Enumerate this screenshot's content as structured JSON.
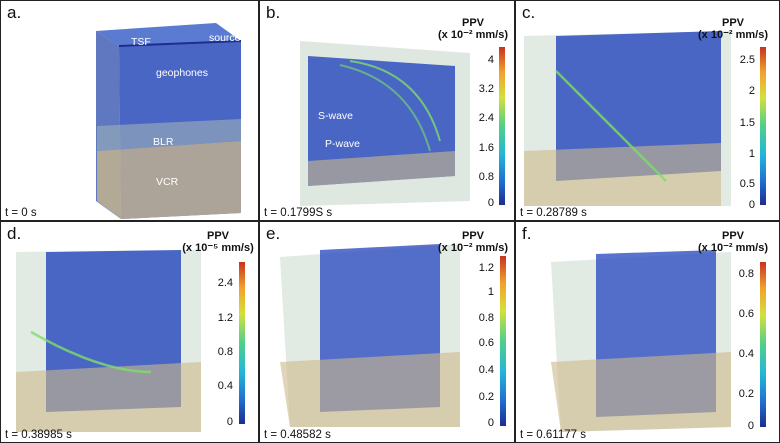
{
  "panels": [
    {
      "label": "a.",
      "time": "t = 0 s",
      "annotations": {
        "tsf": "TSF",
        "source": "source",
        "geophones": "geophones",
        "blr": "BLR",
        "vcr": "VCR"
      }
    },
    {
      "label": "b.",
      "time": "t = 0.1799S s",
      "colorbar": {
        "title": "PPV",
        "unit": "(x 10⁻² mm/s)",
        "ticks": [
          "4",
          "3.2",
          "2.4",
          "1.6",
          "0.8",
          "0"
        ]
      },
      "annotations": {
        "swave": "S-wave",
        "pwave": "P-wave"
      }
    },
    {
      "label": "c.",
      "time": "t = 0.28789 s",
      "colorbar": {
        "title": "PPV",
        "unit": "(x 10⁻² mm/s)",
        "ticks": [
          "2.5",
          "2",
          "1.5",
          "1",
          "0.5",
          "0"
        ]
      }
    },
    {
      "label": "d.",
      "time": "t = 0.38985 s",
      "colorbar": {
        "title": "PPV",
        "unit": "(x 10⁻⁵ mm/s)",
        "ticks": [
          "2.4",
          "1.2",
          "0.8",
          "0.4",
          "0"
        ]
      }
    },
    {
      "label": "e.",
      "time": "t = 0.48582 s",
      "colorbar": {
        "title": "PPV",
        "unit": "(x 10⁻² mm/s)",
        "ticks": [
          "1.2",
          "1",
          "0.8",
          "0.6",
          "0.4",
          "0.2",
          "0"
        ]
      }
    },
    {
      "label": "f.",
      "time": "t = 0.61177 s",
      "colorbar": {
        "title": "PPV",
        "unit": "(x 10⁻² mm/s)",
        "ticks": [
          "0.8",
          "0.6",
          "0.4",
          "0.2",
          "0"
        ]
      }
    }
  ],
  "colors": {
    "blue": "#2a4fbf",
    "tan": "#cdb98a",
    "ghost": "#b9cdbf",
    "wave": "#7fdc6a"
  }
}
